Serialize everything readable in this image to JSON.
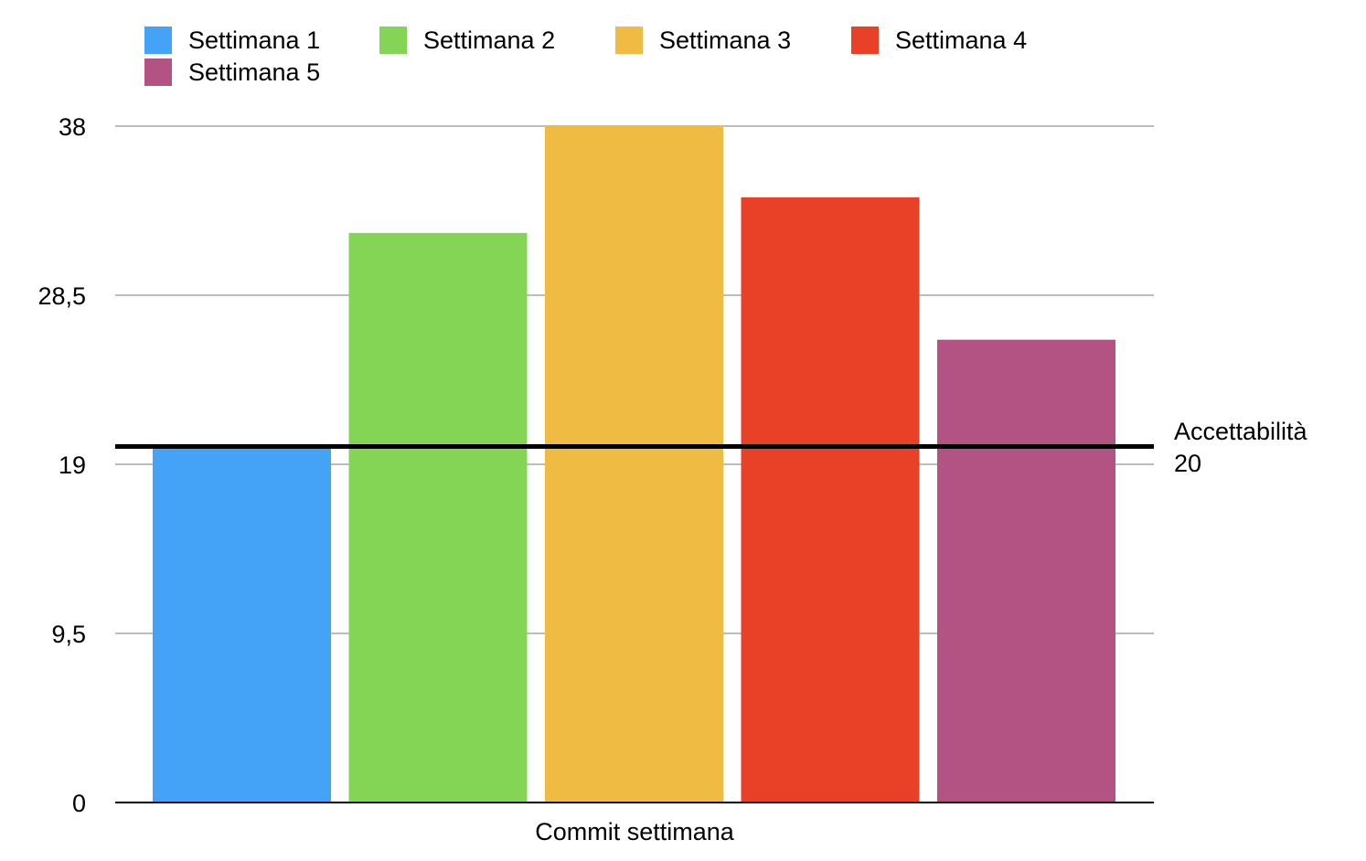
{
  "chart_data": {
    "type": "bar",
    "title": "",
    "xlabel": "Commit settimana",
    "ylabel": "",
    "ylim": [
      0,
      38
    ],
    "yticks": [
      0,
      9.5,
      19,
      28.5,
      38
    ],
    "ytick_labels": [
      "0",
      "9,5",
      "19",
      "28,5",
      "38"
    ],
    "categories": [
      "Commit settimana"
    ],
    "series": [
      {
        "name": "Settimana 1",
        "values": [
          20
        ],
        "color": "#44A3F7"
      },
      {
        "name": "Settimana 2",
        "values": [
          32
        ],
        "color": "#84D556"
      },
      {
        "name": "Settimana 3",
        "values": [
          38
        ],
        "color": "#EFBB43"
      },
      {
        "name": "Settimana 4",
        "values": [
          34
        ],
        "color": "#E94128"
      },
      {
        "name": "Settimana 5",
        "values": [
          26
        ],
        "color": "#B25384"
      }
    ],
    "reference_line": {
      "label": "Accettabilità",
      "value": 20,
      "value_label": "20",
      "color": "#000000"
    },
    "grid": true,
    "legend_position": "top-left"
  }
}
